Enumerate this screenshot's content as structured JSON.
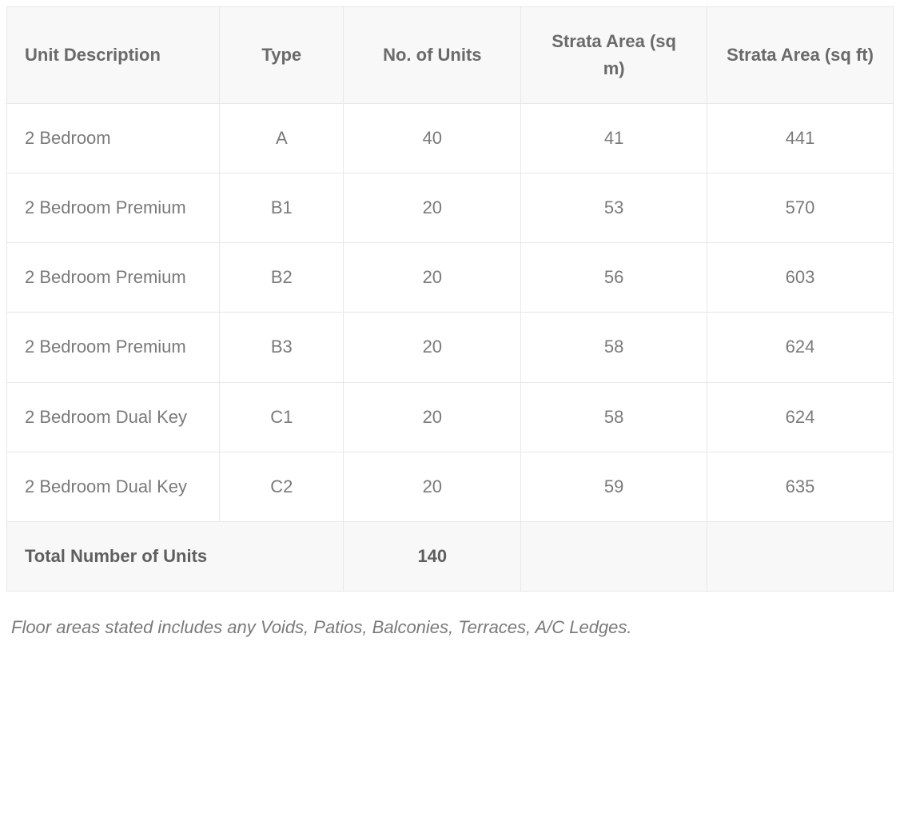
{
  "table": {
    "columns": [
      {
        "label": "Unit Description",
        "align": "left"
      },
      {
        "label": "Type",
        "align": "center"
      },
      {
        "label": "No. of Units",
        "align": "center"
      },
      {
        "label": "Strata Area (sq m)",
        "align": "center"
      },
      {
        "label": "Strata Area (sq ft)",
        "align": "center"
      }
    ],
    "rows": [
      {
        "description": "2 Bedroom",
        "type": "A",
        "units": "40",
        "sqm": "41",
        "sqft": "441"
      },
      {
        "description": "2 Bedroom Premium",
        "type": "B1",
        "units": "20",
        "sqm": "53",
        "sqft": "570"
      },
      {
        "description": "2 Bedroom Premium",
        "type": "B2",
        "units": "20",
        "sqm": "56",
        "sqft": "603"
      },
      {
        "description": "2 Bedroom Premium",
        "type": "B3",
        "units": "20",
        "sqm": "58",
        "sqft": "624"
      },
      {
        "description": "2 Bedroom Dual Key",
        "type": "C1",
        "units": "20",
        "sqm": "58",
        "sqft": "624"
      },
      {
        "description": "2 Bedroom Dual Key",
        "type": "C2",
        "units": "20",
        "sqm": "59",
        "sqft": "635"
      }
    ],
    "footer": {
      "label": "Total Number of Units",
      "total_units": "140"
    },
    "header_bg": "#f8f8f8",
    "border_color": "#e8e8e8",
    "text_color": "#7a7a7a",
    "header_text_color": "#6a6a6a"
  },
  "footnote": "Floor areas stated includes any Voids, Patios, Balconies, Terraces, A/C Ledges."
}
